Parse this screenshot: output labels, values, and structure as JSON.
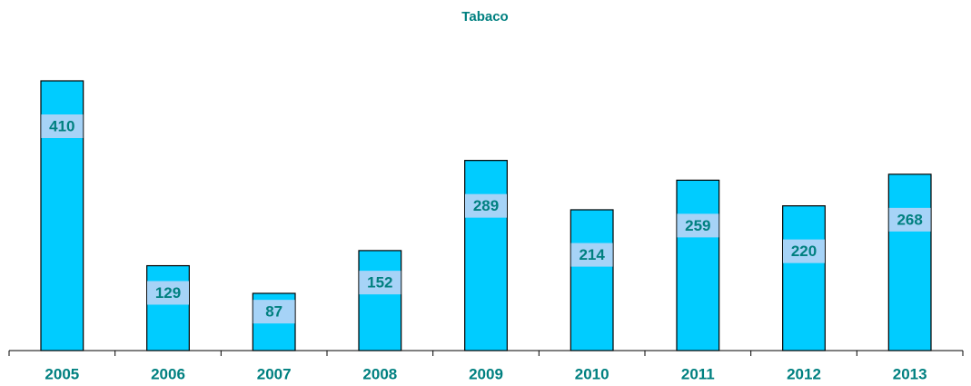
{
  "chart_data": {
    "type": "bar",
    "title": "Tabaco",
    "categories": [
      "2005",
      "2006",
      "2007",
      "2008",
      "2009",
      "2010",
      "2011",
      "2012",
      "2013"
    ],
    "values": [
      410,
      129,
      87,
      152,
      289,
      214,
      259,
      220,
      268
    ],
    "color": "#00ccff",
    "label_color": "#008080",
    "label_background": "#a6d3f7",
    "grid": false
  }
}
